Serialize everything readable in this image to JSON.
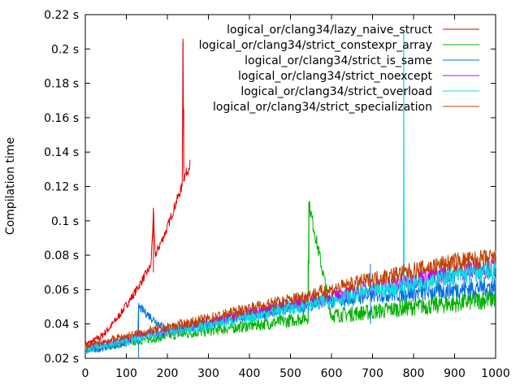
{
  "chart_data": {
    "type": "line",
    "title": "",
    "xlabel": "",
    "ylabel": "Compilation time",
    "xlim": [
      0,
      1000
    ],
    "ylim": [
      0.02,
      0.22
    ],
    "x_ticks": [
      0,
      100,
      200,
      300,
      400,
      500,
      600,
      700,
      800,
      900,
      1000
    ],
    "y_ticks": [
      0.02,
      0.04,
      0.06,
      0.08,
      0.1,
      0.12,
      0.14,
      0.16,
      0.18,
      0.2,
      0.22
    ],
    "y_tick_labels": [
      "0.02 s",
      "0.04 s",
      "0.06 s",
      "0.08 s",
      "0.1 s",
      "0.12 s",
      "0.14 s",
      "0.16 s",
      "0.18 s",
      "0.2 s",
      "0.22 s"
    ],
    "grid": false,
    "legend_position": "top-right",
    "series": [
      {
        "name": "logical_or/clang34/lazy_naive_struct",
        "color": "#e00000",
        "x": [
          0,
          20,
          40,
          60,
          80,
          100,
          120,
          140,
          160,
          166,
          170,
          180,
          200,
          220,
          236,
          238,
          240,
          250,
          255
        ],
        "y": [
          0.028,
          0.03,
          0.033,
          0.038,
          0.044,
          0.051,
          0.058,
          0.066,
          0.074,
          0.105,
          0.08,
          0.085,
          0.096,
          0.11,
          0.12,
          0.206,
          0.125,
          0.13,
          0.133
        ],
        "spikes": [
          [
            166,
            0.105
          ],
          [
            238,
            0.206
          ],
          [
            240,
            0.165
          ]
        ]
      },
      {
        "name": "logical_or/clang34/strict_constexpr_array",
        "color": "#00b000",
        "x": [
          0,
          100,
          200,
          300,
          400,
          500,
          543,
          545,
          600,
          700,
          800,
          900,
          1000
        ],
        "y": [
          0.025,
          0.029,
          0.033,
          0.036,
          0.039,
          0.042,
          0.044,
          0.11,
          0.045,
          0.047,
          0.05,
          0.052,
          0.055
        ],
        "spikes": [
          [
            543,
            0.077
          ],
          [
            545,
            0.11
          ]
        ]
      },
      {
        "name": "logical_or/clang34/strict_is_same",
        "color": "#0070e0",
        "x": [
          0,
          100,
          128,
          130,
          200,
          300,
          400,
          500,
          600,
          700,
          800,
          900,
          1000
        ],
        "y": [
          0.024,
          0.029,
          0.032,
          0.05,
          0.036,
          0.04,
          0.045,
          0.05,
          0.053,
          0.057,
          0.058,
          0.06,
          0.062
        ],
        "spikes": [
          [
            130,
            0.05
          ],
          [
            695,
            0.075
          ]
        ]
      },
      {
        "name": "logical_or/clang34/strict_noexcept",
        "color": "#c000ff",
        "x": [
          0,
          100,
          200,
          300,
          400,
          500,
          600,
          700,
          800,
          900,
          1000
        ],
        "y": [
          0.026,
          0.031,
          0.036,
          0.041,
          0.046,
          0.051,
          0.056,
          0.061,
          0.066,
          0.07,
          0.073
        ]
      },
      {
        "name": "logical_or/clang34/strict_overload",
        "color": "#00e0e0",
        "x": [
          0,
          100,
          200,
          300,
          400,
          500,
          600,
          700,
          775,
          776,
          777,
          800,
          900,
          1000
        ],
        "y": [
          0.025,
          0.03,
          0.035,
          0.039,
          0.044,
          0.049,
          0.054,
          0.059,
          0.062,
          0.21,
          0.062,
          0.064,
          0.068,
          0.071
        ],
        "spikes": [
          [
            776,
            0.21
          ]
        ]
      },
      {
        "name": "logical_or/clang34/strict_specialization",
        "color": "#c04000",
        "x": [
          0,
          100,
          200,
          300,
          400,
          500,
          600,
          700,
          800,
          900,
          1000
        ],
        "y": [
          0.027,
          0.033,
          0.038,
          0.043,
          0.049,
          0.054,
          0.06,
          0.066,
          0.071,
          0.076,
          0.078
        ]
      }
    ]
  }
}
